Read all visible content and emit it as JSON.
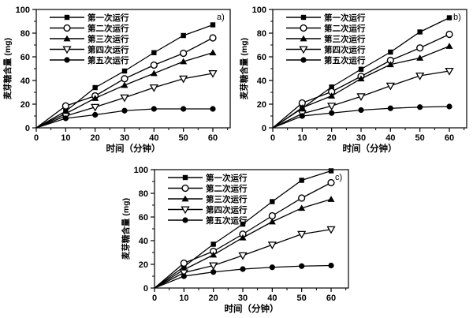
{
  "figure": {
    "background": "#ffffff",
    "line_color": "#000000",
    "marker_fill": "#000000",
    "marker_open_fill": "#ffffff"
  },
  "chart_data": [
    {
      "id": "a",
      "panel_label": "a)",
      "type": "line",
      "title": "",
      "xlabel": "时间（分钟）",
      "ylabel": "麦芽糖含量 (mg)",
      "xlim": [
        0,
        66
      ],
      "ylim": [
        0,
        100
      ],
      "xticks": [
        0,
        10,
        20,
        30,
        40,
        50,
        60
      ],
      "yticks": [
        0,
        20,
        40,
        60,
        80,
        100
      ],
      "minor_xticks": [
        5,
        15,
        25,
        35,
        45,
        55,
        65
      ],
      "minor_yticks": [
        10,
        30,
        50,
        70,
        90
      ],
      "grid": false,
      "legend_position": "top-left",
      "x": [
        0,
        10,
        20,
        30,
        40,
        50,
        60
      ],
      "series": [
        {
          "name": "第一次运行",
          "marker": "square-filled",
          "values": [
            0,
            14,
            34,
            48,
            63.5,
            78,
            87
          ]
        },
        {
          "name": "第二次运行",
          "marker": "circle-open",
          "values": [
            0,
            18.5,
            27,
            41.5,
            53,
            63,
            76
          ]
        },
        {
          "name": "第三次运行",
          "marker": "triangle-filled",
          "values": [
            0,
            12,
            25,
            36,
            46,
            56,
            63.5
          ]
        },
        {
          "name": "第四次运行",
          "marker": "triangle-down-open",
          "values": [
            0,
            10,
            17.5,
            25.5,
            34,
            41.5,
            46
          ]
        },
        {
          "name": "第五次运行",
          "marker": "circle-filled",
          "values": [
            0,
            8,
            11,
            14.5,
            16,
            16,
            16
          ]
        }
      ]
    },
    {
      "id": "b",
      "panel_label": "b)",
      "type": "line",
      "title": "",
      "xlabel": "时间（分钟）",
      "ylabel": "麦芽糖含量 (mg)",
      "xlim": [
        0,
        66
      ],
      "ylim": [
        0,
        100
      ],
      "xticks": [
        0,
        10,
        20,
        30,
        40,
        50,
        60
      ],
      "yticks": [
        0,
        20,
        40,
        60,
        80,
        100
      ],
      "minor_xticks": [
        5,
        15,
        25,
        35,
        45,
        55,
        65
      ],
      "minor_yticks": [
        10,
        30,
        50,
        70,
        90
      ],
      "grid": false,
      "legend_position": "top-left",
      "x": [
        0,
        10,
        20,
        30,
        40,
        50,
        60
      ],
      "series": [
        {
          "name": "第一次运行",
          "marker": "square-filled",
          "values": [
            0,
            16.5,
            34.5,
            49.5,
            64,
            81,
            93
          ]
        },
        {
          "name": "第二次运行",
          "marker": "circle-open",
          "values": [
            0,
            21,
            30.5,
            43.5,
            57,
            67.5,
            79
          ]
        },
        {
          "name": "第三次运行",
          "marker": "triangle-filled",
          "values": [
            0,
            17,
            27,
            41.5,
            53.5,
            59,
            69
          ]
        },
        {
          "name": "第四次运行",
          "marker": "triangle-down-open",
          "values": [
            0,
            12,
            18.5,
            26.5,
            35.5,
            44,
            48
          ]
        },
        {
          "name": "第五次运行",
          "marker": "circle-filled",
          "values": [
            0,
            10,
            12.5,
            15,
            16.5,
            17.5,
            18
          ]
        }
      ]
    },
    {
      "id": "c",
      "panel_label": "c)",
      "type": "line",
      "title": "",
      "xlabel": "时间（分钟）",
      "ylabel": "麦芽糖含量 (mg)",
      "xlim": [
        0,
        66
      ],
      "ylim": [
        0,
        100
      ],
      "xticks": [
        0,
        10,
        20,
        30,
        40,
        50,
        60
      ],
      "yticks": [
        0,
        20,
        40,
        60,
        80,
        100
      ],
      "minor_xticks": [
        5,
        15,
        25,
        35,
        45,
        55,
        65
      ],
      "minor_yticks": [
        10,
        30,
        50,
        70,
        90
      ],
      "grid": false,
      "legend_position": "top-left",
      "x": [
        0,
        10,
        20,
        30,
        40,
        50,
        60
      ],
      "series": [
        {
          "name": "第一次运行",
          "marker": "square-filled",
          "values": [
            0,
            18,
            37,
            54,
            73,
            91,
            99
          ]
        },
        {
          "name": "第二次运行",
          "marker": "circle-open",
          "values": [
            0,
            21,
            31,
            45.5,
            61,
            76,
            89
          ]
        },
        {
          "name": "第三次运行",
          "marker": "triangle-filled",
          "values": [
            0,
            15.5,
            28,
            42.5,
            56,
            67.5,
            75
          ]
        },
        {
          "name": "第四次运行",
          "marker": "triangle-down-open",
          "values": [
            0,
            13,
            19,
            27.5,
            36.5,
            45.5,
            49.5
          ]
        },
        {
          "name": "第五次运行",
          "marker": "circle-filled",
          "values": [
            0,
            10,
            13.5,
            16,
            17.5,
            18.5,
            19
          ]
        }
      ]
    }
  ]
}
